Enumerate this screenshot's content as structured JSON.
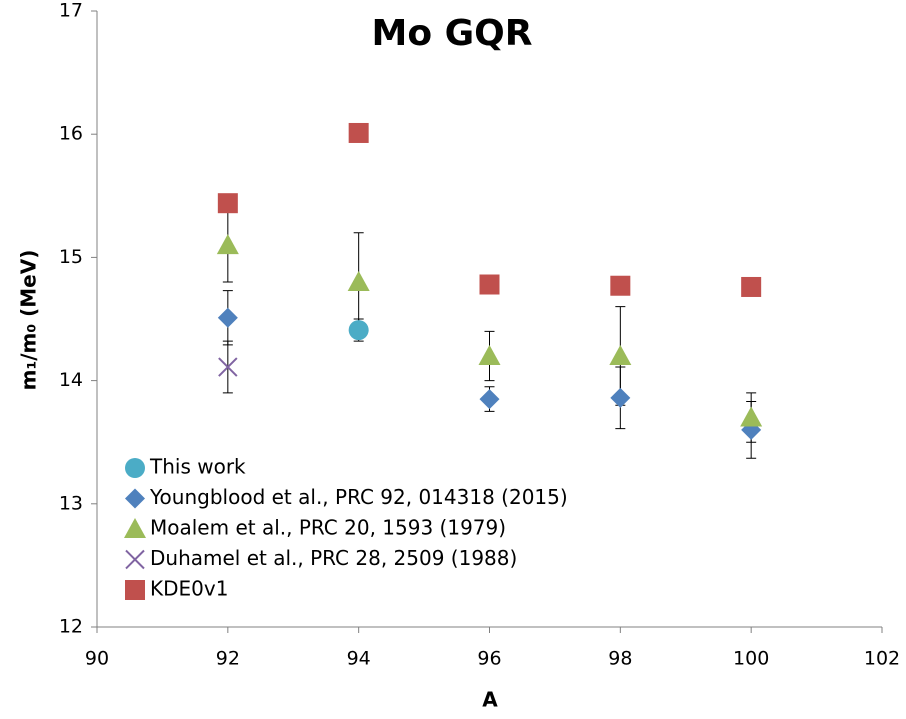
{
  "chart_data": {
    "type": "scatter",
    "title": "Mo GQR",
    "xlabel": "A",
    "ylabel": "m₁/m₀ (MeV)",
    "xlim": [
      90,
      102
    ],
    "xticks": [
      90,
      92,
      94,
      96,
      98,
      100,
      102
    ],
    "ylim": [
      12,
      17
    ],
    "yticks": [
      12,
      13,
      14,
      15,
      16,
      17
    ],
    "grid": false,
    "legend": "lower left",
    "series": [
      {
        "name": "This work",
        "color": "#4bacc6",
        "marker": "circle",
        "x": [
          94
        ],
        "values": [
          14.41
        ],
        "errors": [
          0.09
        ]
      },
      {
        "name": "Youngblood et al., PRC 92, 014318 (2015)",
        "color": "#4f81bd",
        "marker": "diamond",
        "x": [
          92,
          96,
          98,
          100
        ],
        "values": [
          14.51,
          13.85,
          13.86,
          13.6
        ],
        "errors": [
          0.22,
          0.1,
          0.25,
          0.23
        ]
      },
      {
        "name": "Moalem et al., PRC 20, 1593 (1979)",
        "color": "#9bbb59",
        "marker": "triangle",
        "x": [
          92,
          94,
          96,
          98,
          100
        ],
        "values": [
          15.1,
          14.8,
          14.2,
          14.2,
          13.7
        ],
        "errors": [
          0.3,
          0.4,
          0.2,
          0.4,
          0.2
        ]
      },
      {
        "name": "Duhamel et al., PRC 28, 2509 (1988)",
        "color": "#8064a2",
        "marker": "x",
        "x": [
          92
        ],
        "values": [
          14.11
        ],
        "errors": [
          0.21
        ]
      },
      {
        "name": "KDE0v1",
        "color": "#c0504d",
        "marker": "square",
        "x": [
          92,
          94,
          96,
          98,
          100
        ],
        "values": [
          15.44,
          16.01,
          14.78,
          14.77,
          14.76
        ]
      }
    ]
  }
}
